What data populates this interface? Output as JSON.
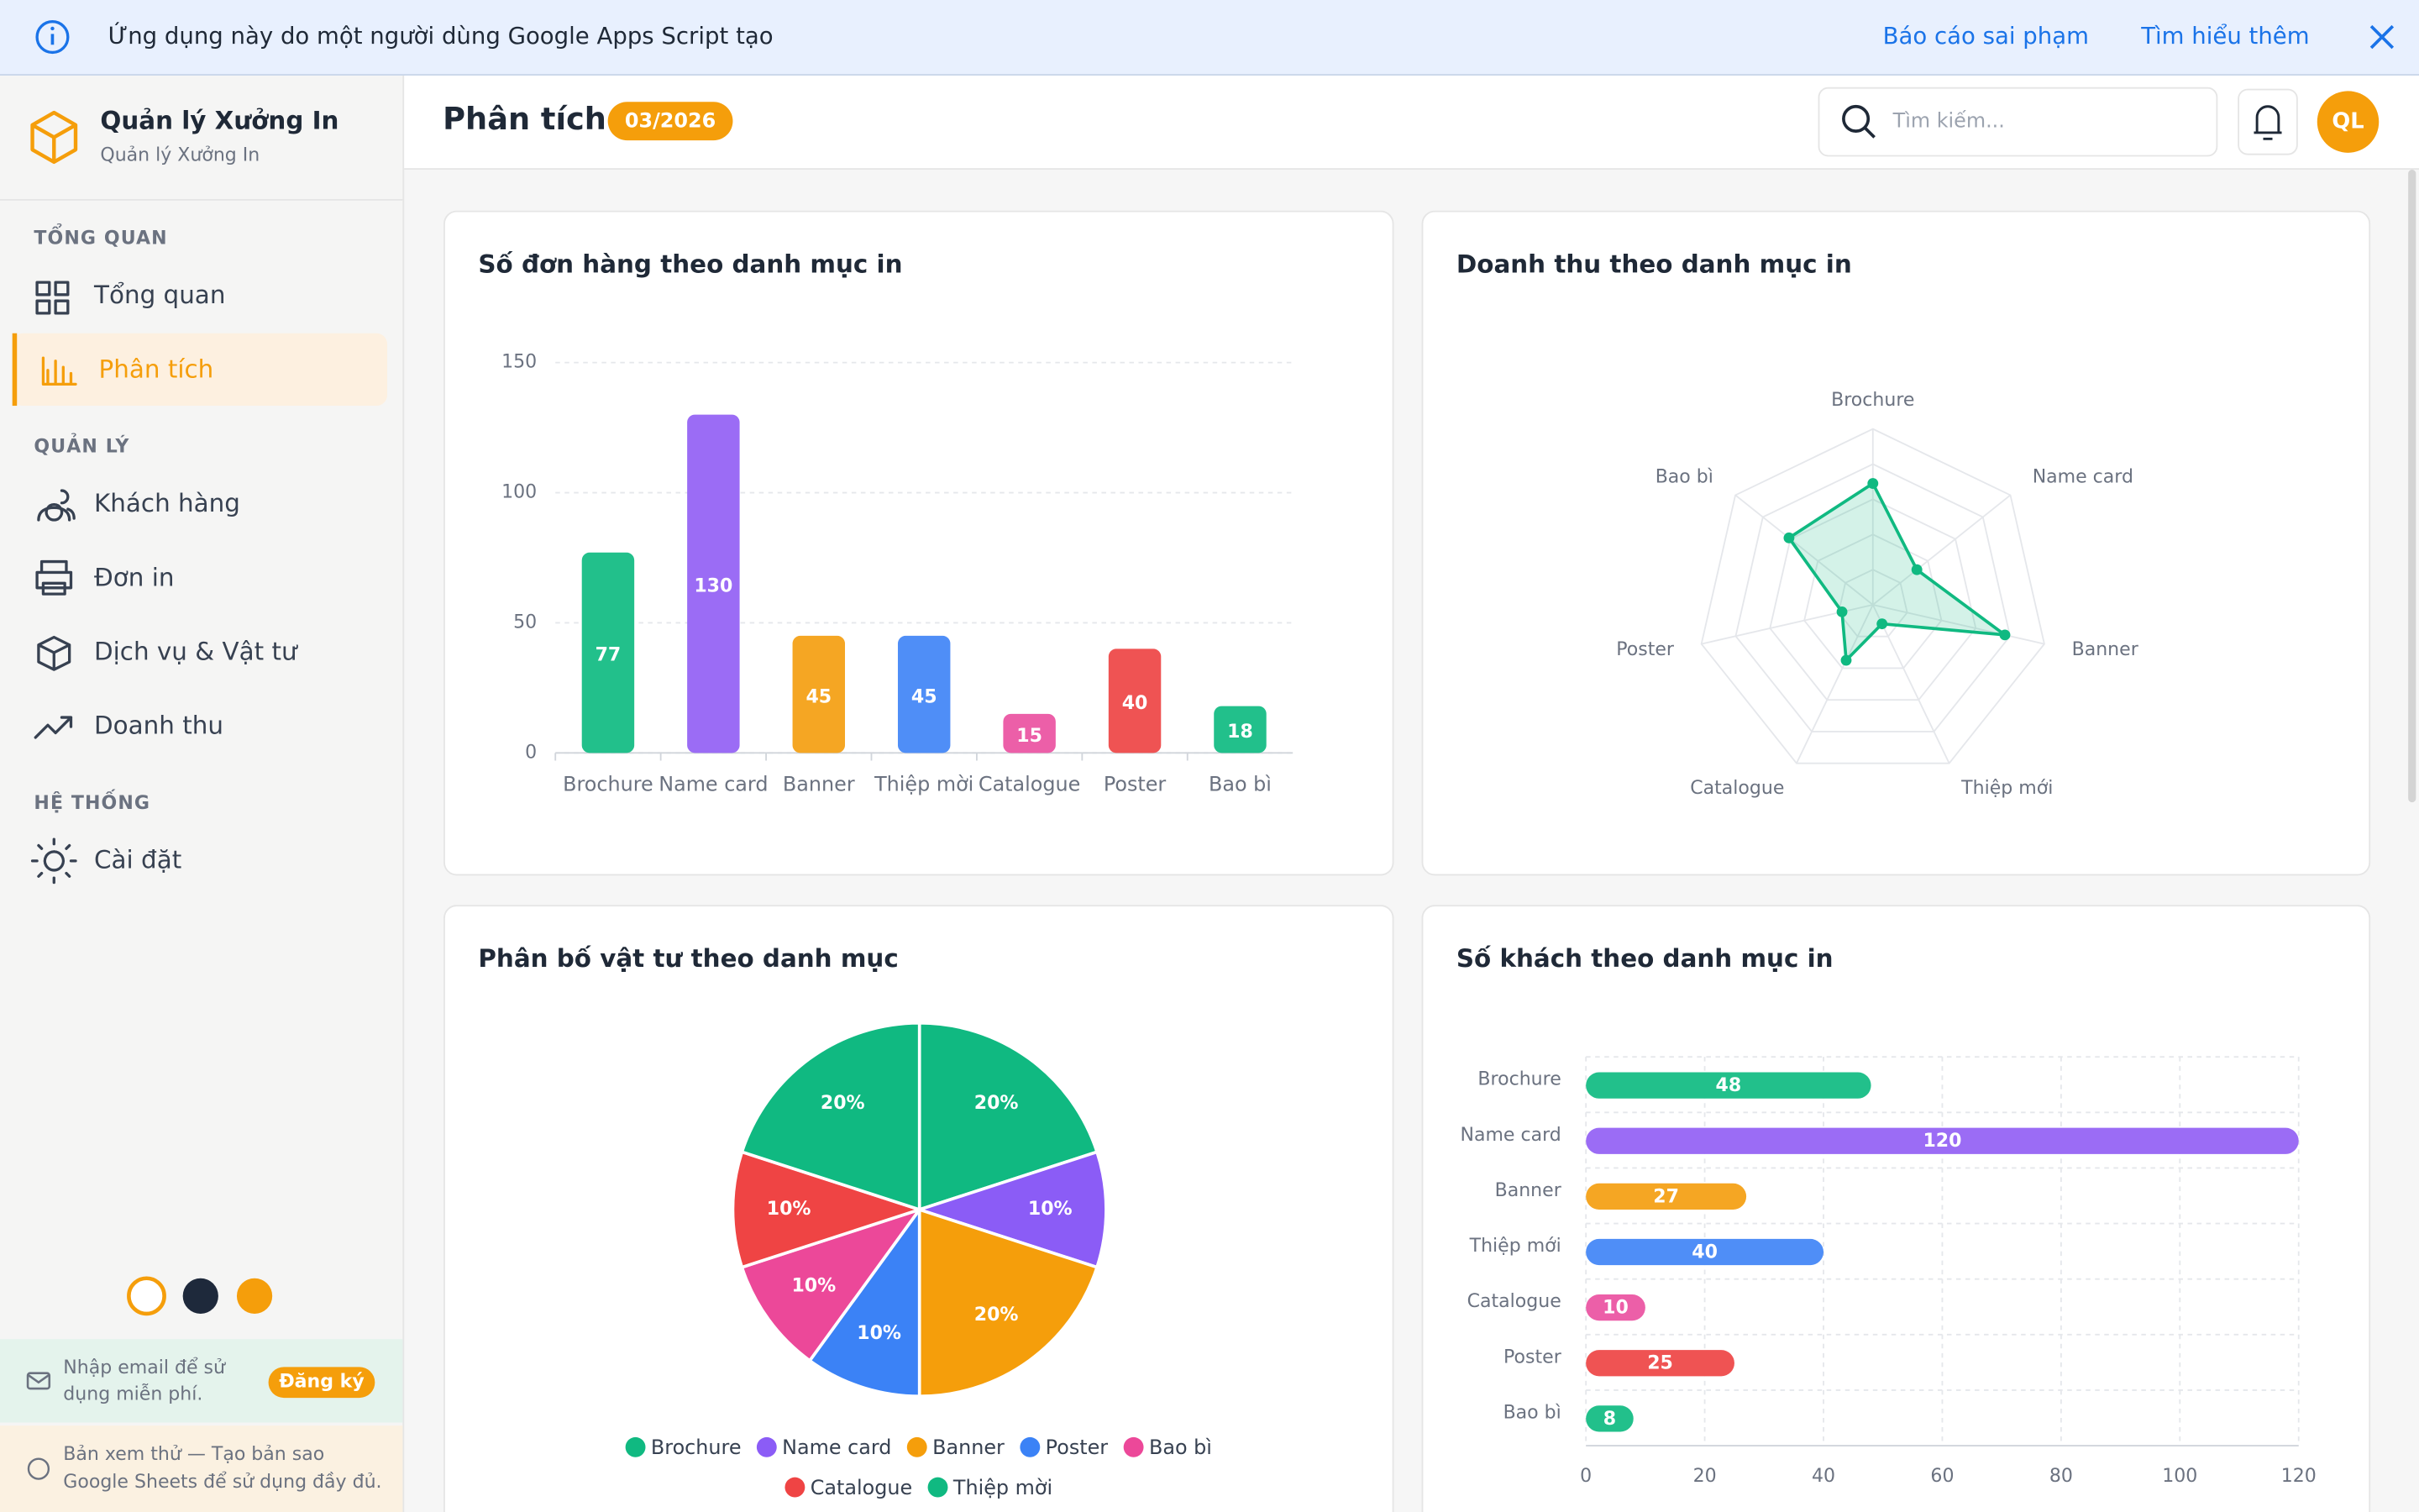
{
  "banner": {
    "text": "Ứng dụng này do một người dùng Google Apps Script tạo",
    "report": "Báo cáo sai phạm",
    "learn_more": "Tìm hiểu thêm"
  },
  "sidebar": {
    "app_name": "Quản lý Xưởng In",
    "app_subtitle": "Quản lý Xưởng In",
    "sections": [
      {
        "title": "TỔNG QUAN",
        "items": [
          "Tổng quan",
          "Phân tích"
        ]
      },
      {
        "title": "QUẢN LÝ",
        "items": [
          "Khách hàng",
          "Đơn in",
          "Dịch vụ & Vật tư",
          "Doanh thu"
        ]
      },
      {
        "title": "HỆ THỐNG",
        "items": [
          "Cài đặt"
        ]
      }
    ],
    "email_prompt": [
      "Nhập email để sử",
      "dụng miễn phí."
    ],
    "signup": "Đăng ký",
    "preview_note": [
      "Bản xem thử — Tạo bản sao",
      "Google Sheets để sử dụng đầy đủ."
    ]
  },
  "header": {
    "title": "Phân tích",
    "badge": "03/2026",
    "search_placeholder": "Tìm kiếm...",
    "avatar": "QL"
  },
  "chart_data": [
    {
      "type": "bar",
      "title": "Số đơn hàng theo danh mục in",
      "categories": [
        "Brochure",
        "Name card",
        "Banner",
        "Thiệp mời",
        "Catalogue",
        "Poster",
        "Bao bì"
      ],
      "values": [
        77,
        130,
        45,
        45,
        15,
        40,
        18
      ],
      "colors": [
        "#22c08b",
        "#9b6cf5",
        "#f5a623",
        "#4f8ef7",
        "#ec5fa8",
        "#ef5353",
        "#22c08b"
      ],
      "ylim": [
        0,
        150
      ],
      "yticks": [
        0,
        50,
        100,
        150
      ],
      "grid": true
    },
    {
      "type": "radar",
      "title": "Doanh thu theo danh mục in",
      "categories": [
        "Brochure",
        "Name card",
        "Banner",
        "Thiệp mới",
        "Catalogue",
        "Poster",
        "Bao bì"
      ],
      "values": [
        69,
        32,
        77,
        12,
        35,
        18,
        61
      ],
      "rlim": [
        0,
        100
      ],
      "color": "#10b981"
    },
    {
      "type": "pie",
      "title": "Phân bố vật tư theo danh mục",
      "categories": [
        "Brochure",
        "Name card",
        "Banner",
        "Poster",
        "Bao bì",
        "Catalogue",
        "Thiệp mời"
      ],
      "values": [
        20,
        10,
        20,
        10,
        10,
        10,
        20
      ],
      "value_labels": [
        "20%",
        "10%",
        "20%",
        "10%",
        "10%",
        "10%",
        "20%"
      ],
      "colors": [
        "#10b981",
        "#8b5cf6",
        "#f59e0b",
        "#3b82f6",
        "#ec4899",
        "#ef4444",
        "#10b981"
      ]
    },
    {
      "type": "hbar",
      "title": "Số khách theo danh mục in",
      "categories": [
        "Brochure",
        "Name card",
        "Banner",
        "Thiệp mới",
        "Catalogue",
        "Poster",
        "Bao bì"
      ],
      "values": [
        48,
        120,
        27,
        40,
        10,
        25,
        8
      ],
      "colors": [
        "#22c08b",
        "#9b6cf5",
        "#f5a623",
        "#4f8ef7",
        "#ec5fa8",
        "#ef5353",
        "#22c08b"
      ],
      "xlim": [
        0,
        120
      ],
      "xticks": [
        0,
        20,
        40,
        60,
        80,
        100,
        120
      ],
      "grid": true
    }
  ]
}
